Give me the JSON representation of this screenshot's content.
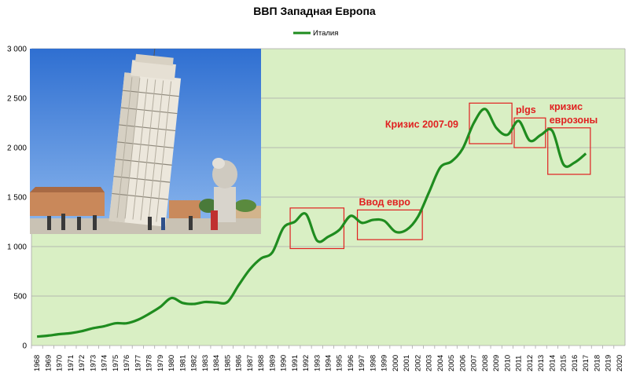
{
  "chart_data": {
    "type": "line",
    "title": "ВВП Западная Европа",
    "xlabel": "",
    "ylabel": "",
    "ylim": [
      0,
      3000
    ],
    "yticks": [
      0,
      500,
      1000,
      1500,
      2000,
      2500,
      3000
    ],
    "ytick_labels": [
      "0",
      "500",
      "1 000",
      "1 500",
      "2 000",
      "2 500",
      "3 000"
    ],
    "grid": true,
    "legend_position": "top-center",
    "plot_background": "#d9efc4",
    "categories": [
      "1968",
      "1969",
      "1970",
      "1971",
      "1972",
      "1973",
      "1974",
      "1975",
      "1976",
      "1977",
      "1978",
      "1979",
      "1980",
      "1981",
      "1982",
      "1983",
      "1984",
      "1985",
      "1986",
      "1987",
      "1988",
      "1989",
      "1990",
      "1991",
      "1992",
      "1993",
      "1994",
      "1995",
      "1996",
      "1997",
      "1998",
      "1999",
      "2000",
      "2001",
      "2002",
      "2003",
      "2004",
      "2005",
      "2006",
      "2007",
      "2008",
      "2009",
      "2010",
      "2011",
      "2012",
      "2013",
      "2014",
      "2015",
      "2016",
      "2017",
      "2018",
      "2019",
      "2020"
    ],
    "series": [
      {
        "name": "Италия",
        "color": "#1f8c1f",
        "values": [
          90,
          100,
          115,
          125,
          145,
          175,
          195,
          225,
          225,
          260,
          320,
          390,
          480,
          430,
          420,
          440,
          435,
          440,
          610,
          770,
          880,
          940,
          1190,
          1250,
          1330,
          1060,
          1100,
          1170,
          1310,
          1240,
          1270,
          1260,
          1150,
          1170,
          1300,
          1550,
          1800,
          1860,
          1990,
          2250,
          2390,
          2200,
          2130,
          2270,
          2070,
          2130,
          2170,
          1830,
          1850,
          1940,
          null,
          null,
          null
        ]
      }
    ],
    "annotations": [
      {
        "text": "",
        "x_from": "1991",
        "x_to": "1995",
        "y_from": 980,
        "y_to": 1390
      },
      {
        "text": "Ввод евро",
        "x_from": "1997",
        "x_to": "2002",
        "y_from": 1070,
        "y_to": 1370
      },
      {
        "text": "Кризис 2007-09",
        "x_from": "2007",
        "x_to": "2010",
        "y_from": 2040,
        "y_to": 2450
      },
      {
        "text": "plgs",
        "x_from": "2011",
        "x_to": "2013",
        "y_from": 2000,
        "y_to": 2300
      },
      {
        "text": "кризис\nеврозоны",
        "x_from": "2014",
        "x_to": "2017",
        "y_from": 1730,
        "y_to": 2200
      }
    ]
  },
  "annotation_color": "#e02020",
  "photo": {
    "caption": "Leaning Tower of Pisa"
  }
}
